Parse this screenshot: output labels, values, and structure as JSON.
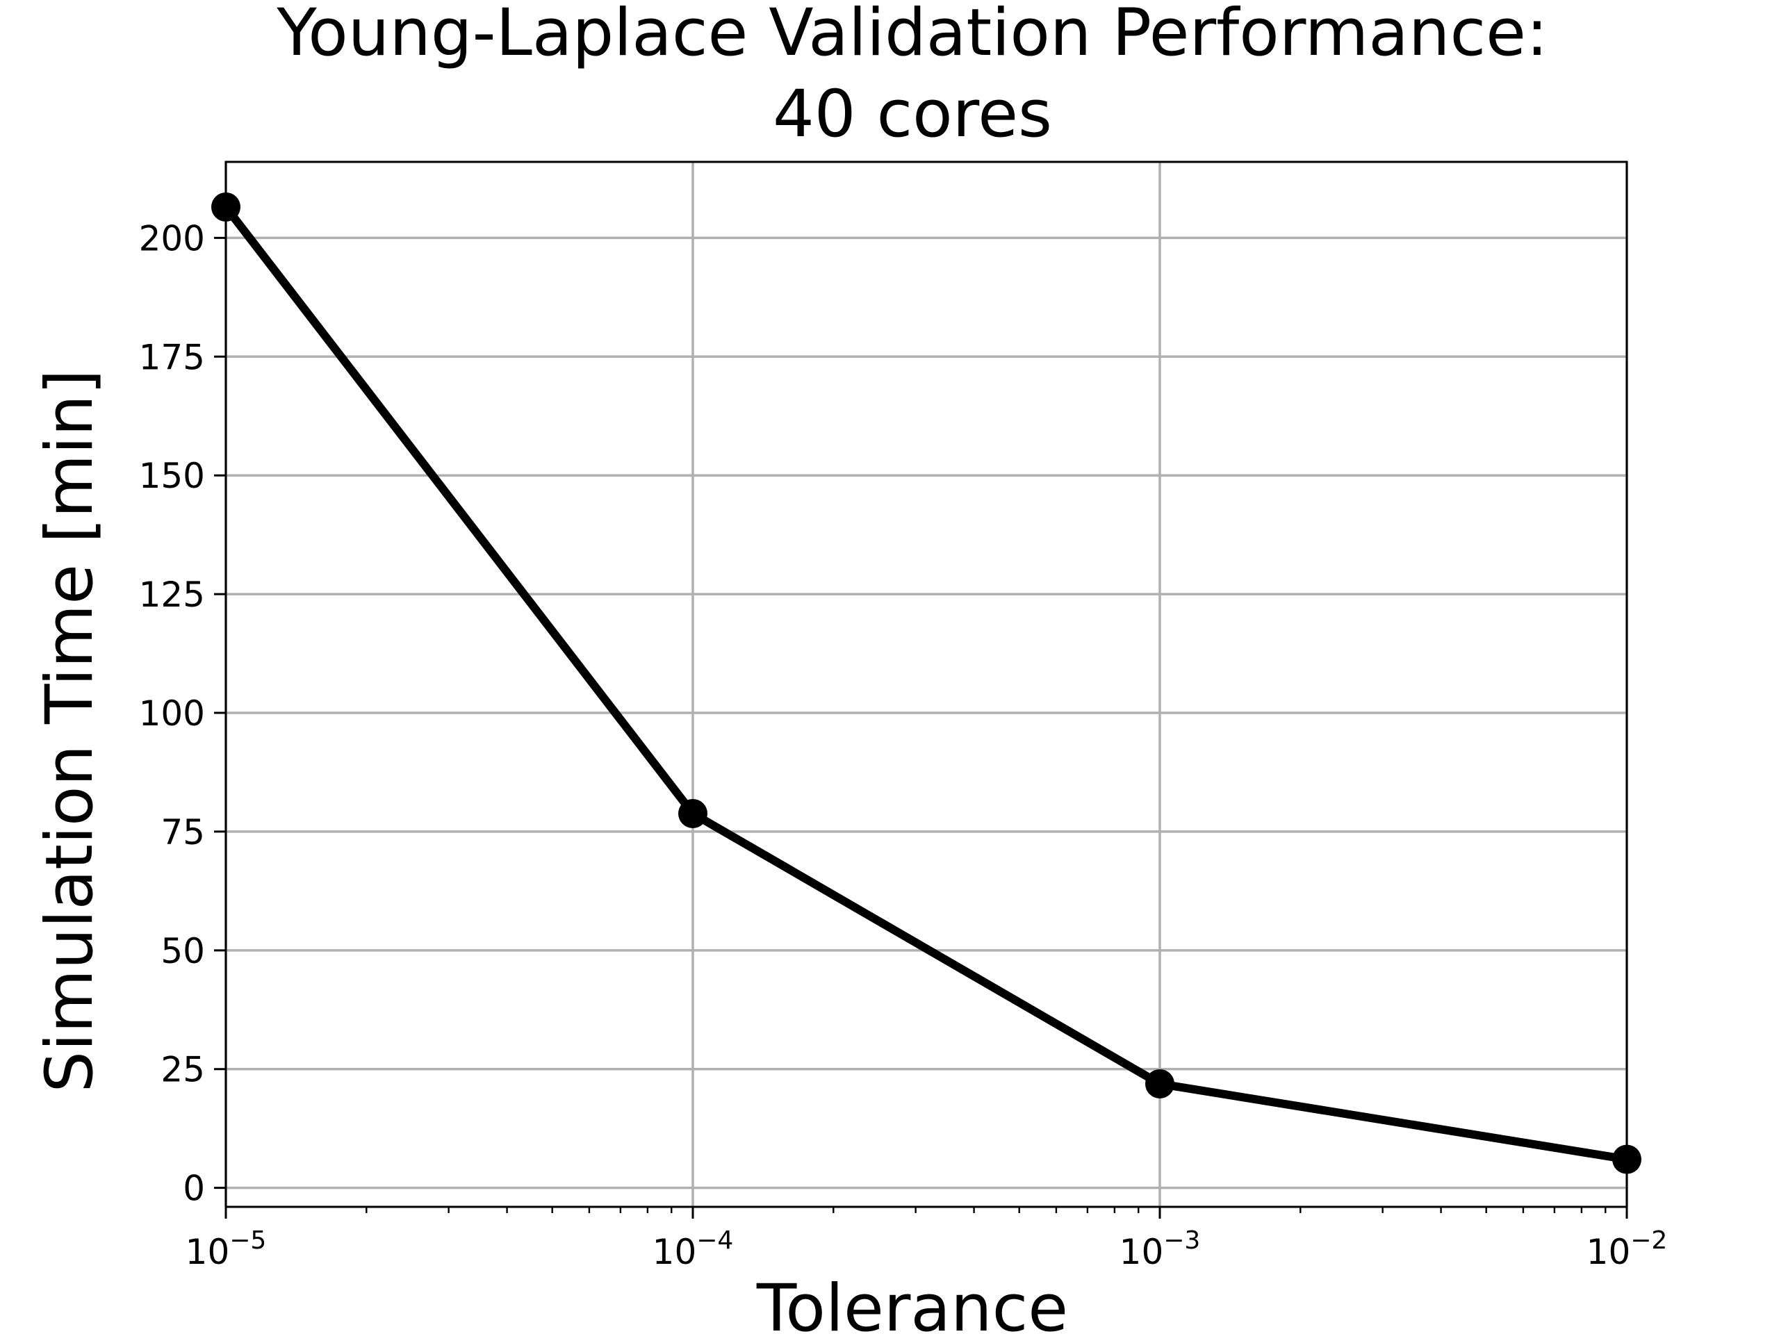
{
  "chart_data": {
    "type": "line",
    "title_line1": "Young-Laplace Validation Performance:",
    "title_line2": "40 cores",
    "xlabel": "Tolerance",
    "ylabel": "Simulation Time [min]",
    "x_scale": "log",
    "xlim": [
      1e-05,
      0.01
    ],
    "ylim": [
      -4,
      216
    ],
    "x_ticks": [
      {
        "value": 1e-05,
        "base": "10",
        "exp": "−5"
      },
      {
        "value": 0.0001,
        "base": "10",
        "exp": "−4"
      },
      {
        "value": 0.001,
        "base": "10",
        "exp": "−3"
      },
      {
        "value": 0.01,
        "base": "10",
        "exp": "−2"
      }
    ],
    "y_ticks": [
      {
        "value": 0,
        "label": "0"
      },
      {
        "value": 25,
        "label": "25"
      },
      {
        "value": 50,
        "label": "50"
      },
      {
        "value": 75,
        "label": "75"
      },
      {
        "value": 100,
        "label": "100"
      },
      {
        "value": 125,
        "label": "125"
      },
      {
        "value": 150,
        "label": "150"
      },
      {
        "value": 175,
        "label": "175"
      },
      {
        "value": 200,
        "label": "200"
      }
    ],
    "grid": true,
    "series": [
      {
        "color": "#000000",
        "marker": "circle",
        "x": [
          1e-05,
          0.0001,
          0.001,
          0.01
        ],
        "y": [
          206.5,
          78.8,
          21.9,
          6.0
        ]
      }
    ],
    "colors": {
      "line": "#000000",
      "grid": "#b0b0b0",
      "axes": "#000000"
    }
  }
}
